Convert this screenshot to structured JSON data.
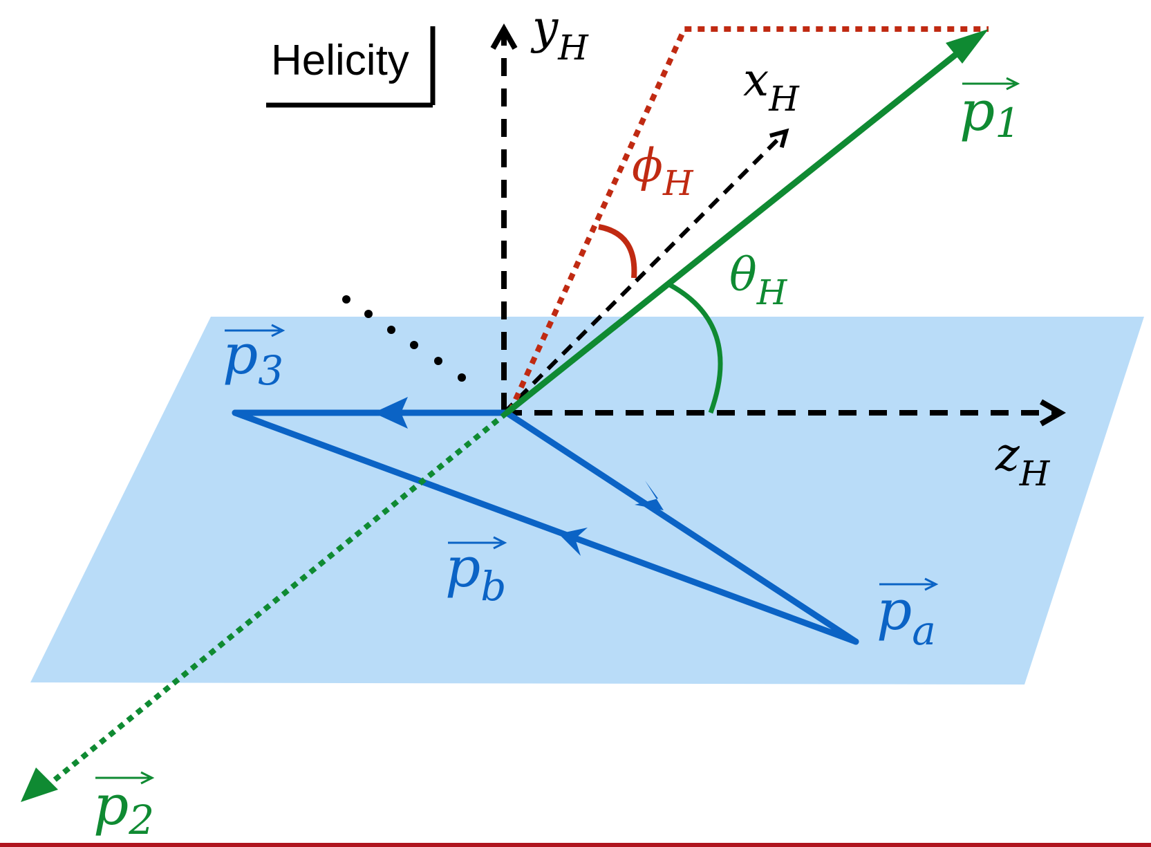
{
  "badge": {
    "text": "Helicity"
  },
  "colors": {
    "plane": "#b9dcf8",
    "blue": "#0b63c5",
    "green": "#0f8a32",
    "red": "#c02a12",
    "black": "#000000",
    "rule": "#b0141e"
  },
  "axes": {
    "y": {
      "base": "y",
      "sub": "H"
    },
    "x": {
      "base": "x",
      "sub": "H"
    },
    "z": {
      "base": "z",
      "sub": "H"
    }
  },
  "angles": {
    "phi": {
      "base": "ϕ",
      "sub": "H"
    },
    "theta": {
      "base": "θ",
      "sub": "H"
    }
  },
  "vectors": {
    "p1": {
      "base": "p",
      "sub": "1"
    },
    "p2": {
      "base": "p",
      "sub": "2"
    },
    "p3": {
      "base": "p",
      "sub": "3"
    },
    "pa": {
      "base": "p",
      "sub": "a"
    },
    "pb": {
      "base": "p",
      "sub": "b"
    }
  },
  "icons": {
    "arrowhead": "arrowhead-icon",
    "overarrow": "vector-overarrow-icon"
  }
}
